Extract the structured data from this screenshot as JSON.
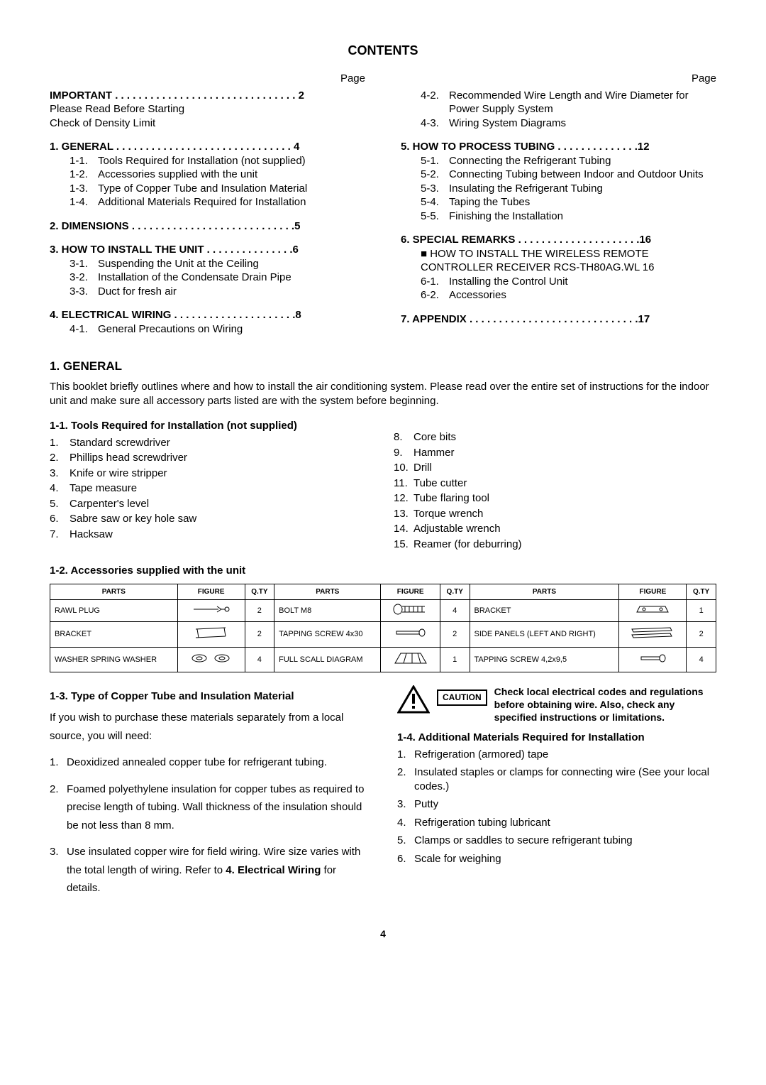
{
  "title": "CONTENTS",
  "page_label": "Page",
  "page_number": "4",
  "toc_left": {
    "important": {
      "head": "IMPORTANT . . . . . . . . . . . . . . . . . . . . . . . . . . . . . . . 2",
      "lines": [
        "Please Read Before Starting",
        "Check of Density Limit"
      ]
    },
    "general": {
      "head": "1.  GENERAL  . . . . . . . . . . . . . . . . . . . . . . . . . . . . . . 4",
      "subs": [
        {
          "n": "1-1.",
          "t": "Tools Required for Installation (not supplied)"
        },
        {
          "n": "1-2.",
          "t": "Accessories supplied with the unit"
        },
        {
          "n": "1-3.",
          "t": "Type of Copper Tube and Insulation Material"
        },
        {
          "n": "1-4.",
          "t": "Additional Materials Required for Installation"
        }
      ]
    },
    "dimensions": {
      "head": "2.  DIMENSIONS  . . . . . . . . . . . . . . . . . . . . . . . . . . . .5"
    },
    "install": {
      "head": "3.  HOW TO INSTALL THE UNIT  . . . . . . . . . . . . . . .6",
      "subs": [
        {
          "n": "3-1.",
          "t": "Suspending the Unit at the Ceiling"
        },
        {
          "n": "3-2.",
          "t": "Installation of the Condensate Drain Pipe"
        },
        {
          "n": "3-3.",
          "t": "Duct for fresh air"
        }
      ]
    },
    "elec": {
      "head": "4.  ELECTRICAL WIRING  . . . . . . . . . . . . . . . . . . . . .8",
      "subs": [
        {
          "n": "4-1.",
          "t": "General  Precautions on Wiring"
        }
      ]
    }
  },
  "toc_right": {
    "elec_cont": [
      {
        "n": "4-2.",
        "t": "Recommended Wire Length and Wire Diameter for Power Supply System"
      },
      {
        "n": "4-3.",
        "t": "Wiring System Diagrams"
      }
    ],
    "tubing": {
      "head": "5.  HOW TO PROCESS TUBING . . . . . . . . . . . . . .12",
      "subs": [
        {
          "n": "5-1.",
          "t": "Connecting the Refrigerant Tubing"
        },
        {
          "n": "5-2.",
          "t": "Connecting Tubing between Indoor and Outdoor Units"
        },
        {
          "n": "5-3.",
          "t": "Insulating the Refrigerant Tubing"
        },
        {
          "n": "5-4.",
          "t": "Taping the Tubes"
        },
        {
          "n": "5-5.",
          "t": "Finishing the Installation"
        }
      ]
    },
    "remarks": {
      "head": "6.  SPECIAL REMARKS  . . . . . . . . . . . . . . . . . . . . .16",
      "note": "■ HOW TO INSTALL THE WIRELESS REMOTE CONTROLLER RECEIVER RCS-TH80AG.WL  16",
      "subs": [
        {
          "n": "6-1.",
          "t": "Installing the Control Unit"
        },
        {
          "n": "6-2.",
          "t": "Accessories"
        }
      ]
    },
    "appendix": {
      "head": "7.  APPENDIX  . . . . . . . . . . . . . . . . . . . . . . . . . . . . .17"
    }
  },
  "section1": {
    "heading": "1.  GENERAL",
    "intro": "This booklet briefly outlines where and how to install the air conditioning system. Please read over the entire set of instructions for the indoor unit and make sure all accessory parts listed are with the system before beginning.",
    "sub11": "1-1.  Tools Required for Installation (not supplied)",
    "tools_left": [
      {
        "n": "1.",
        "t": "Standard screwdriver"
      },
      {
        "n": "2.",
        "t": "Phillips head screwdriver"
      },
      {
        "n": "3.",
        "t": "Knife or wire stripper"
      },
      {
        "n": "4.",
        "t": "Tape measure"
      },
      {
        "n": "5.",
        "t": "Carpenter's level"
      },
      {
        "n": "6.",
        "t": "Sabre saw or key hole saw"
      },
      {
        "n": "7.",
        "t": "Hacksaw"
      }
    ],
    "tools_right": [
      {
        "n": "8.",
        "t": "Core bits"
      },
      {
        "n": "9.",
        "t": "Hammer"
      },
      {
        "n": "10.",
        "t": "Drill"
      },
      {
        "n": "11.",
        "t": "Tube cutter"
      },
      {
        "n": "12.",
        "t": "Tube flaring tool"
      },
      {
        "n": "13.",
        "t": "Torque wrench"
      },
      {
        "n": "14.",
        "t": "Adjustable wrench"
      },
      {
        "n": "15.",
        "t": "Reamer (for deburring)"
      }
    ],
    "sub12": "1-2.  Accessories supplied with the unit",
    "table": {
      "headers": [
        "PARTS",
        "FIGURE",
        "Q.TY",
        "PARTS",
        "FIGURE",
        "Q.TY",
        "PARTS",
        "FIGURE",
        "Q.TY"
      ],
      "rows": [
        [
          "RAWL PLUG",
          "fig",
          "2",
          "BOLT M8",
          "fig",
          "4",
          "BRACKET",
          "fig",
          "1"
        ],
        [
          "BRACKET",
          "fig",
          "2",
          "TAPPING SCREW 4x30",
          "fig",
          "2",
          "SIDE PANELS (LEFT AND RIGHT)",
          "fig",
          "2"
        ],
        [
          "WASHER SPRING WASHER",
          "fig",
          "4",
          "FULL SCALL DIAGRAM",
          "fig",
          "1",
          "TAPPING SCREW 4,2x9,5",
          "fig",
          "4"
        ]
      ]
    },
    "sub13": "1-3.  Type of Copper Tube and Insulation Material",
    "s13_intro": "If you wish to purchase these materials separately from a local source, you will need:",
    "s13_items": [
      {
        "n": "1.",
        "t": "Deoxidized annealed copper tube for refrigerant tubing."
      },
      {
        "n": "2.",
        "t": "Foamed polyethylene insulation for copper tubes as required to precise length of tubing. Wall thickness of the insulation should be not less than 8 mm."
      },
      {
        "n": "3.",
        "t1": "Use insulated copper wire for field wiring. Wire size varies with the total length of wiring. Refer to ",
        "bold": "4. Electrical Wiring",
        "t2": " for details."
      }
    ],
    "caution_label": "CAUTION",
    "caution_text": "Check local electrical codes and regulations before obtaining wire. Also, check any specified instructions or limitations.",
    "sub14": "1-4.  Additional Materials Required for Installation",
    "s14_items": [
      {
        "n": "1.",
        "t": "Refrigeration (armored) tape"
      },
      {
        "n": "2.",
        "t": "Insulated staples or clamps for connecting wire (See your local codes.)"
      },
      {
        "n": "3.",
        "t": "Putty"
      },
      {
        "n": "4.",
        "t": "Refrigeration tubing lubricant"
      },
      {
        "n": "5.",
        "t": "Clamps or saddles to secure refrigerant tubing"
      },
      {
        "n": "6.",
        "t": "Scale for weighing"
      }
    ]
  }
}
